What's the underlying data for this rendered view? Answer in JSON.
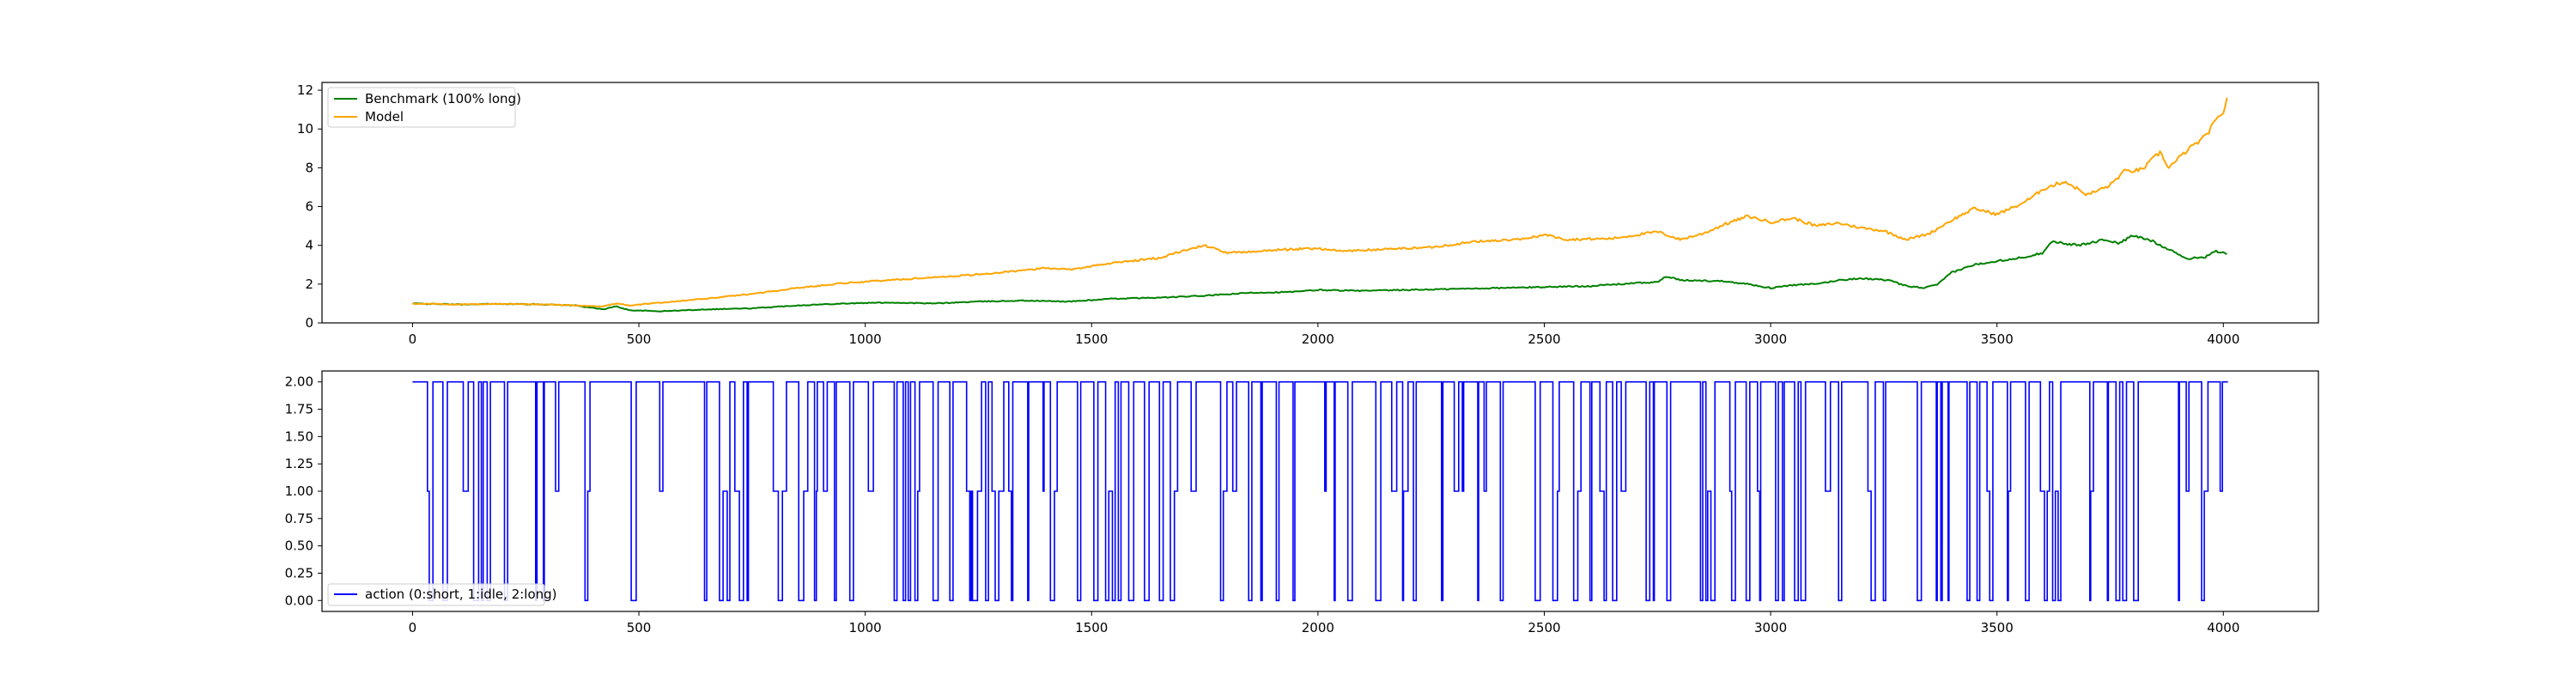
{
  "chart_data": [
    {
      "type": "line",
      "xlim": [
        -200,
        4210
      ],
      "ylim": [
        0,
        12.4
      ],
      "xticks": [
        0,
        500,
        1000,
        1500,
        2000,
        2500,
        3000,
        3500,
        4000
      ],
      "yticks": [
        0,
        2,
        4,
        6,
        8,
        10,
        12
      ],
      "legend_position": "top-left",
      "series": [
        {
          "name": "Benchmark (100% long)",
          "color": "#008000",
          "points": [
            [
              0,
              1.0
            ],
            [
              100,
              0.95
            ],
            [
              200,
              0.98
            ],
            [
              300,
              0.95
            ],
            [
              360,
              0.9
            ],
            [
              420,
              0.7
            ],
            [
              450,
              0.85
            ],
            [
              480,
              0.65
            ],
            [
              550,
              0.6
            ],
            [
              650,
              0.7
            ],
            [
              750,
              0.75
            ],
            [
              850,
              0.9
            ],
            [
              950,
              1.0
            ],
            [
              1050,
              1.05
            ],
            [
              1150,
              1.0
            ],
            [
              1250,
              1.1
            ],
            [
              1350,
              1.15
            ],
            [
              1450,
              1.1
            ],
            [
              1550,
              1.25
            ],
            [
              1650,
              1.3
            ],
            [
              1750,
              1.4
            ],
            [
              1850,
              1.55
            ],
            [
              1950,
              1.6
            ],
            [
              2000,
              1.7
            ],
            [
              2100,
              1.65
            ],
            [
              2200,
              1.7
            ],
            [
              2300,
              1.75
            ],
            [
              2400,
              1.8
            ],
            [
              2500,
              1.85
            ],
            [
              2600,
              1.9
            ],
            [
              2700,
              2.05
            ],
            [
              2750,
              2.1
            ],
            [
              2770,
              2.4
            ],
            [
              2800,
              2.2
            ],
            [
              2900,
              2.15
            ],
            [
              2950,
              2.0
            ],
            [
              3000,
              1.8
            ],
            [
              3050,
              1.95
            ],
            [
              3100,
              2.0
            ],
            [
              3150,
              2.2
            ],
            [
              3200,
              2.3
            ],
            [
              3260,
              2.2
            ],
            [
              3300,
              1.9
            ],
            [
              3340,
              1.8
            ],
            [
              3370,
              2.0
            ],
            [
              3400,
              2.6
            ],
            [
              3450,
              3.0
            ],
            [
              3500,
              3.2
            ],
            [
              3550,
              3.35
            ],
            [
              3600,
              3.6
            ],
            [
              3620,
              4.2
            ],
            [
              3680,
              4.0
            ],
            [
              3740,
              4.3
            ],
            [
              3770,
              4.1
            ],
            [
              3800,
              4.5
            ],
            [
              3840,
              4.25
            ],
            [
              3880,
              3.8
            ],
            [
              3920,
              3.3
            ],
            [
              3960,
              3.4
            ],
            [
              3980,
              3.7
            ],
            [
              4000,
              3.6
            ],
            [
              4010,
              3.5
            ]
          ]
        },
        {
          "name": "Model",
          "color": "#ffa500",
          "points": [
            [
              0,
              1.0
            ],
            [
              100,
              0.95
            ],
            [
              200,
              0.98
            ],
            [
              300,
              0.95
            ],
            [
              360,
              0.9
            ],
            [
              420,
              0.85
            ],
            [
              450,
              1.0
            ],
            [
              480,
              0.9
            ],
            [
              550,
              1.05
            ],
            [
              650,
              1.25
            ],
            [
              750,
              1.5
            ],
            [
              850,
              1.8
            ],
            [
              950,
              2.05
            ],
            [
              1050,
              2.2
            ],
            [
              1150,
              2.35
            ],
            [
              1250,
              2.5
            ],
            [
              1350,
              2.7
            ],
            [
              1400,
              2.85
            ],
            [
              1450,
              2.75
            ],
            [
              1550,
              3.1
            ],
            [
              1650,
              3.35
            ],
            [
              1700,
              3.7
            ],
            [
              1750,
              4.0
            ],
            [
              1800,
              3.6
            ],
            [
              1900,
              3.75
            ],
            [
              2000,
              3.85
            ],
            [
              2050,
              3.7
            ],
            [
              2150,
              3.8
            ],
            [
              2250,
              3.9
            ],
            [
              2350,
              4.2
            ],
            [
              2450,
              4.3
            ],
            [
              2500,
              4.55
            ],
            [
              2550,
              4.3
            ],
            [
              2650,
              4.35
            ],
            [
              2750,
              4.7
            ],
            [
              2800,
              4.3
            ],
            [
              2850,
              4.6
            ],
            [
              2900,
              5.1
            ],
            [
              2950,
              5.5
            ],
            [
              3000,
              5.2
            ],
            [
              3050,
              5.4
            ],
            [
              3100,
              5.0
            ],
            [
              3150,
              5.15
            ],
            [
              3200,
              4.9
            ],
            [
              3250,
              4.75
            ],
            [
              3300,
              4.3
            ],
            [
              3350,
              4.6
            ],
            [
              3400,
              5.3
            ],
            [
              3450,
              5.9
            ],
            [
              3500,
              5.6
            ],
            [
              3550,
              6.1
            ],
            [
              3580,
              6.5
            ],
            [
              3600,
              6.9
            ],
            [
              3650,
              7.3
            ],
            [
              3700,
              6.6
            ],
            [
              3750,
              7.1
            ],
            [
              3780,
              7.8
            ],
            [
              3820,
              7.9
            ],
            [
              3860,
              8.8
            ],
            [
              3880,
              8.0
            ],
            [
              3920,
              8.9
            ],
            [
              3960,
              9.6
            ],
            [
              3980,
              10.3
            ],
            [
              4000,
              10.9
            ],
            [
              4010,
              11.7
            ]
          ]
        }
      ]
    },
    {
      "type": "line",
      "step": true,
      "xlim": [
        -200,
        4210
      ],
      "ylim": [
        -0.1,
        2.1
      ],
      "xticks": [
        0,
        500,
        1000,
        1500,
        2000,
        2500,
        3000,
        3500,
        4000
      ],
      "yticks": [
        "0.00",
        "0.25",
        "0.50",
        "0.75",
        "1.00",
        "1.25",
        "1.50",
        "1.75",
        "2.00"
      ],
      "legend_position": "bottom-left",
      "value_levels": [
        0,
        1,
        2
      ],
      "x_range": [
        0,
        4010
      ],
      "series": [
        {
          "name": "action (0:short, 1:idle, 2:long)",
          "color": "#0000ff"
        }
      ]
    }
  ]
}
